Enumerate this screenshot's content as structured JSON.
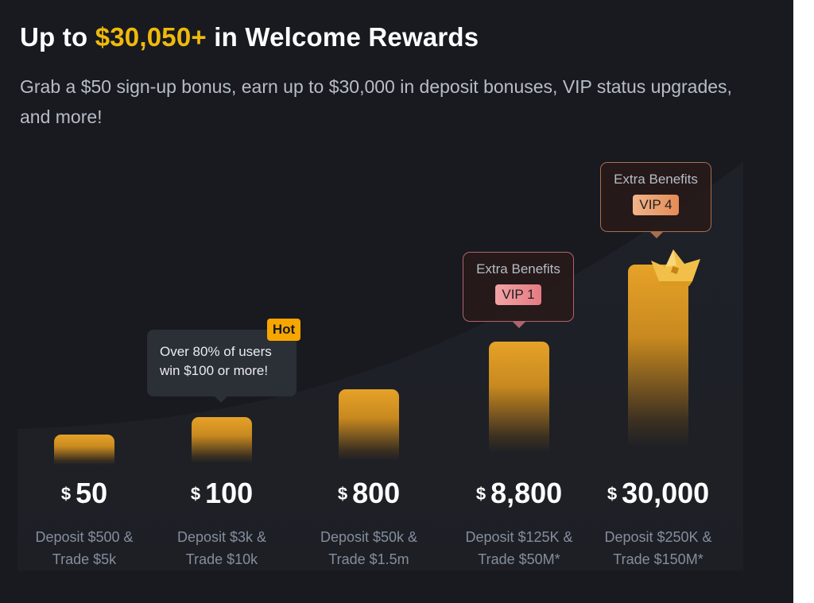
{
  "header": {
    "title_prefix": "Up to ",
    "title_amount": "$30,050+",
    "title_suffix": " in Welcome Rewards",
    "subtitle": "Grab a $50 sign-up bonus, earn up to $30,000 in deposit bonuses, VIP status upgrades, and more!"
  },
  "colors": {
    "accent": "#f0b90b",
    "background": "#181a20",
    "bar": "#e6a228",
    "hot_badge": "#f7a600",
    "vip1_badge": "#e57b83",
    "vip4_badge": "#e58b56"
  },
  "tiers": [
    {
      "currency": "$",
      "amount": "50",
      "deposit_line": "Deposit $500 &",
      "trade_line": "Trade $5k"
    },
    {
      "currency": "$",
      "amount": "100",
      "deposit_line": "Deposit $3k &",
      "trade_line": "Trade $10k"
    },
    {
      "currency": "$",
      "amount": "800",
      "deposit_line": "Deposit $50k &",
      "trade_line": "Trade $1.5m"
    },
    {
      "currency": "$",
      "amount": "8,800",
      "deposit_line": "Deposit $125K &",
      "trade_line": "Trade $50M*"
    },
    {
      "currency": "$",
      "amount": "30,000",
      "deposit_line": "Deposit $250K &",
      "trade_line": "Trade $150M*"
    }
  ],
  "callouts": {
    "hot": {
      "badge": "Hot",
      "line1": "Over 80% of users",
      "line2": "win $100 or more!"
    },
    "vip1": {
      "title": "Extra Benefits",
      "badge": "VIP 1"
    },
    "vip4": {
      "title": "Extra Benefits",
      "badge": "VIP 4"
    }
  },
  "icons": {
    "crown": "crown-icon"
  }
}
